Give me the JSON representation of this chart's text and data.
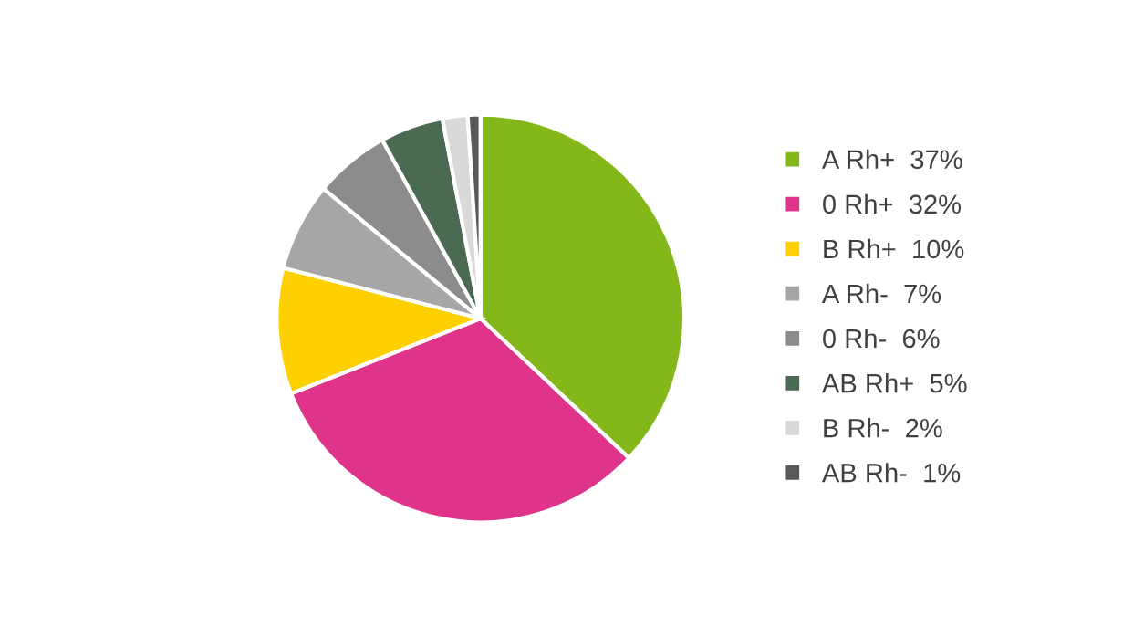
{
  "chart_data": {
    "type": "pie",
    "categories": [
      "A Rh+",
      "0 Rh+",
      "B Rh+",
      "A Rh-",
      "0 Rh-",
      "AB Rh+",
      "B Rh-",
      "AB Rh-"
    ],
    "values": [
      37,
      32,
      10,
      7,
      6,
      5,
      2,
      1
    ],
    "value_labels": [
      "37%",
      "32%",
      "10%",
      "7%",
      "6%",
      "5%",
      "2%",
      "1%"
    ],
    "colors": [
      "#84b81a",
      "#e0338a",
      "#ffd000",
      "#a6a6a6",
      "#8c8c8c",
      "#4a6b52",
      "#d9d9d9",
      "#595959"
    ],
    "legend": "right"
  }
}
